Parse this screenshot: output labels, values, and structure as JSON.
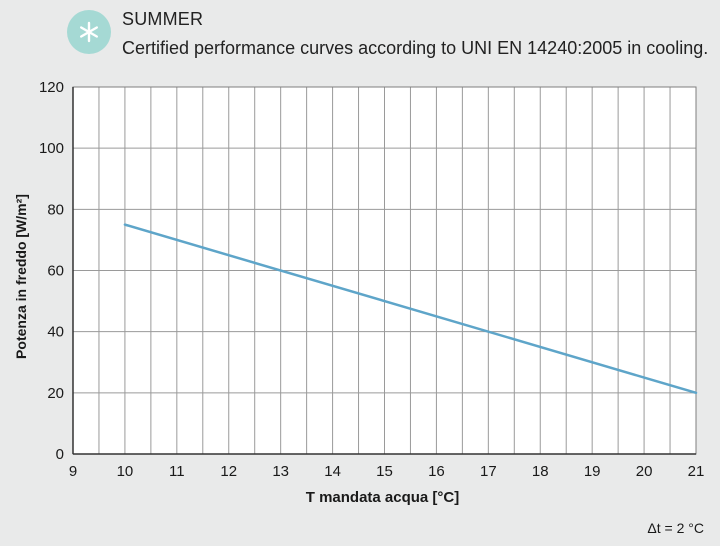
{
  "header": {
    "icon": "snowflake-icon",
    "title": "SUMMER",
    "subtitle": "Certified performance curves according to UNI EN 14240:2005 in cooling."
  },
  "chart_data": {
    "type": "line",
    "title": "",
    "xlabel": "T mandata acqua [°C]",
    "ylabel": "Potenza in freddo [W/m²]",
    "xlim": [
      9,
      21
    ],
    "ylim": [
      0,
      120
    ],
    "xticks": [
      9,
      10,
      11,
      12,
      13,
      14,
      15,
      16,
      17,
      18,
      19,
      20,
      21
    ],
    "yticks": [
      0,
      20,
      40,
      60,
      80,
      100,
      120
    ],
    "grid": true,
    "series": [
      {
        "x": [
          10,
          21
        ],
        "y": [
          75,
          20
        ],
        "color": "#5ea5c9"
      }
    ],
    "annotation": "Δt = 2 °C"
  },
  "colors": {
    "background": "#e9eaea",
    "plot_background": "#ffffff",
    "grid": "#9a9a9a",
    "line": "#5ea5c9",
    "icon": "#a5d9d4"
  }
}
